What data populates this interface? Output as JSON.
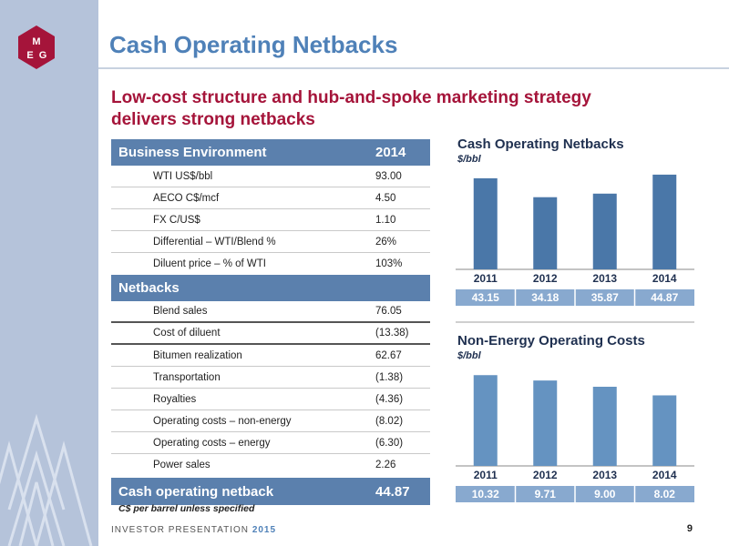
{
  "header": {
    "title": "Cash Operating Netbacks",
    "subtitle_line1": "Low-cost structure and hub-and-spoke marketing strategy",
    "subtitle_line2": "delivers strong netbacks"
  },
  "table": {
    "section1_header": "Business Environment",
    "section1_year": "2014",
    "section1_rows": [
      {
        "label": "WTI US$/bbl",
        "value": "93.00"
      },
      {
        "label": "AECO C$/mcf",
        "value": "4.50"
      },
      {
        "label": "FX C/US$",
        "value": "1.10"
      },
      {
        "label": "Differential – WTI/Blend %",
        "value": "26%"
      },
      {
        "label": "Diluent price – % of WTI",
        "value": "103%"
      }
    ],
    "section2_header": "Netbacks",
    "section2_rows": [
      {
        "label": "Blend sales",
        "value": "76.05"
      },
      {
        "label": "Cost of diluent",
        "value": "(13.38)"
      },
      {
        "label": "Bitumen realization",
        "value": "62.67"
      },
      {
        "label": "Transportation",
        "value": "(1.38)"
      },
      {
        "label": "Royalties",
        "value": "(4.36)"
      },
      {
        "label": "Operating costs – non-energy",
        "value": "(8.02)"
      },
      {
        "label": "Operating costs – energy",
        "value": "(6.30)"
      },
      {
        "label": "Power sales",
        "value": "2.26"
      }
    ],
    "total_label": "Cash operating netback",
    "total_value": "44.87",
    "note": "C$ per barrel unless specified"
  },
  "colors": {
    "accent": "#4f81b8",
    "brand_red": "#a5143a",
    "chart1_bar": "#4a77a8",
    "chart2_bar": "#6593c1",
    "value_box": "#88a9cf"
  },
  "chart_data": [
    {
      "type": "bar",
      "title": "Cash Operating Netbacks",
      "ylabel": "$/bbl",
      "categories": [
        "2011",
        "2012",
        "2013",
        "2014"
      ],
      "values": [
        43.15,
        34.18,
        35.87,
        44.87
      ],
      "value_labels": [
        "43.15",
        "34.18",
        "35.87",
        "44.87"
      ],
      "ylim": [
        0,
        50
      ]
    },
    {
      "type": "bar",
      "title": "Non-Energy Operating Costs",
      "ylabel": "$/bbl",
      "categories": [
        "2011",
        "2012",
        "2013",
        "2014"
      ],
      "values": [
        10.32,
        9.71,
        9.0,
        8.02
      ],
      "value_labels": [
        "10.32",
        "9.71",
        "9.00",
        "8.02"
      ],
      "ylim": [
        0,
        12
      ]
    }
  ],
  "footer": {
    "label": "INVESTOR PRESENTATION",
    "year": "2015",
    "page": "9"
  },
  "logo": {
    "text": "MEG",
    "icon": "meg-logo-icon"
  }
}
